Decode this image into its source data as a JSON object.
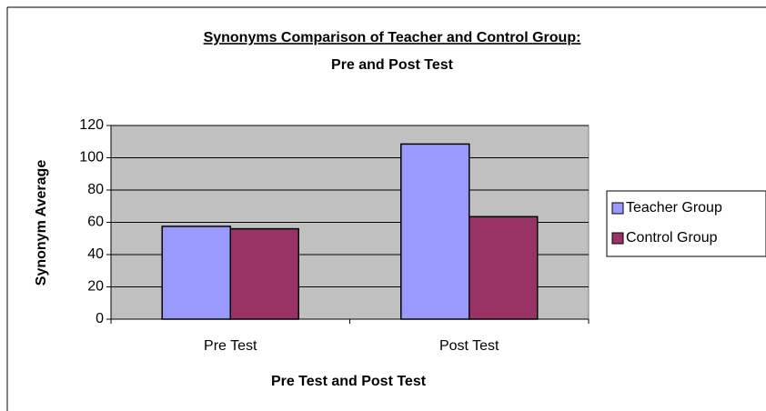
{
  "chart_data": {
    "type": "bar",
    "title": "Synonyms Comparison of Teacher and Control Group:",
    "subtitle": "Pre and Post Test",
    "x_label": "Pre Test and Post Test",
    "y_label": "Synonym Average",
    "categories": [
      "Pre Test",
      "Post Test"
    ],
    "series": [
      {
        "name": "Teacher Group",
        "color": "#9999ff",
        "values": [
          57.5,
          108.5
        ]
      },
      {
        "name": "Control Group",
        "color": "#993366",
        "values": [
          56,
          63.5
        ]
      }
    ],
    "ylim": [
      0,
      120
    ],
    "yticks": [
      0,
      20,
      40,
      60,
      80,
      100,
      120
    ],
    "grid": true,
    "legend": "right"
  }
}
